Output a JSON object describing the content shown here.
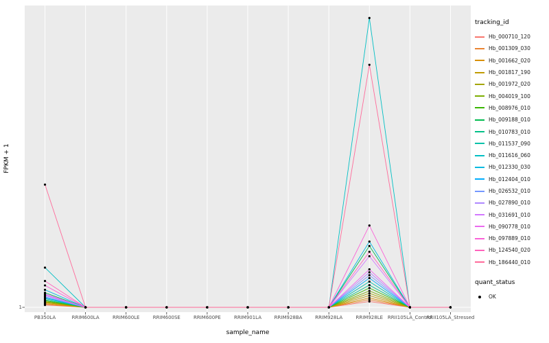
{
  "colors": {
    "panel_bg": "#EBEBEB",
    "grid": "#FFFFFF",
    "tick_mark": "#333333",
    "tick_text": "#4D4D4D",
    "axis_title": "#000000",
    "point": "#000000"
  },
  "chart_data": {
    "type": "line",
    "title": "",
    "xlabel": "sample_name",
    "ylabel": "FPKM + 1",
    "y_tick_labels": [
      "1"
    ],
    "y_scale_note": "log-like axis; only the tick '1' is labeled at the baseline; series values are estimated as fraction of panel height above the baseline (0 = baseline at FPKM+1 = 1, 1 = panel top)",
    "grid": "vertical white major gridlines per category on gray panel",
    "legend_position": "right",
    "categories": [
      "PB350LA",
      "RRIM600LA",
      "RRIM600LE",
      "RRIM600SE",
      "RRIM600PE",
      "RRIM901LA",
      "RRIM928BA",
      "RRIM928LA",
      "RRIM928LE",
      "RRII105LA_Control",
      "RRII105LA_Stressed"
    ],
    "series": [
      {
        "name": "Hb_000710_120",
        "color": "#F8766D",
        "heights": [
          0.008,
          0,
          0,
          0,
          0,
          0,
          0,
          0,
          0.02,
          0,
          0
        ]
      },
      {
        "name": "Hb_001309_030",
        "color": "#EA8331",
        "heights": [
          0.01,
          0,
          0,
          0,
          0,
          0,
          0,
          0,
          0.026,
          0,
          0
        ]
      },
      {
        "name": "Hb_001662_020",
        "color": "#D89000",
        "heights": [
          0.013,
          0,
          0,
          0,
          0,
          0,
          0,
          0,
          0.032,
          0,
          0
        ]
      },
      {
        "name": "Hb_001817_190",
        "color": "#C09B00",
        "heights": [
          0.016,
          0,
          0,
          0,
          0,
          0,
          0,
          0,
          0.04,
          0,
          0
        ]
      },
      {
        "name": "Hb_001972_020",
        "color": "#A3A500",
        "heights": [
          0.018,
          0,
          0,
          0,
          0,
          0,
          0,
          0,
          0.048,
          0,
          0
        ]
      },
      {
        "name": "Hb_004019_100",
        "color": "#7CAE00",
        "heights": [
          0.02,
          0,
          0,
          0,
          0,
          0,
          0,
          0,
          0.056,
          0,
          0
        ]
      },
      {
        "name": "Hb_008976_010",
        "color": "#39B600",
        "heights": [
          0.023,
          0,
          0,
          0,
          0,
          0,
          0,
          0,
          0.066,
          0,
          0
        ]
      },
      {
        "name": "Hb_009188_010",
        "color": "#00BB4E",
        "heights": [
          0.05,
          0,
          0,
          0,
          0,
          0,
          0,
          0,
          0.21,
          0,
          0
        ]
      },
      {
        "name": "Hb_010783_010",
        "color": "#00C087",
        "heights": [
          0.026,
          0,
          0,
          0,
          0,
          0,
          0,
          0,
          0.076,
          0,
          0
        ]
      },
      {
        "name": "Hb_011537_090",
        "color": "#00C1A9",
        "heights": [
          0.03,
          0,
          0,
          0,
          0,
          0,
          0,
          0,
          0.088,
          0,
          0
        ]
      },
      {
        "name": "Hb_011616_060",
        "color": "#00BFC4",
        "heights": [
          0.136,
          0,
          0,
          0,
          0,
          0,
          0,
          0,
          0.99,
          0,
          0
        ]
      },
      {
        "name": "Hb_012330_030",
        "color": "#00BAE0",
        "heights": [
          0.06,
          0,
          0,
          0,
          0,
          0,
          0,
          0,
          0.225,
          0,
          0
        ]
      },
      {
        "name": "Hb_012404_010",
        "color": "#00ACFC",
        "heights": [
          0.033,
          0,
          0,
          0,
          0,
          0,
          0,
          0,
          0.1,
          0,
          0
        ]
      },
      {
        "name": "Hb_026532_010",
        "color": "#7497FF",
        "heights": [
          0.036,
          0,
          0,
          0,
          0,
          0,
          0,
          0,
          0.11,
          0,
          0
        ]
      },
      {
        "name": "Hb_027890_010",
        "color": "#AE87FF",
        "heights": [
          0.04,
          0,
          0,
          0,
          0,
          0,
          0,
          0,
          0.12,
          0,
          0
        ]
      },
      {
        "name": "Hb_031691_010",
        "color": "#D277FF",
        "heights": [
          0.043,
          0,
          0,
          0,
          0,
          0,
          0,
          0,
          0.175,
          0,
          0
        ]
      },
      {
        "name": "Hb_090778_010",
        "color": "#EB69EF",
        "heights": [
          0.046,
          0,
          0,
          0,
          0,
          0,
          0,
          0,
          0.13,
          0,
          0
        ]
      },
      {
        "name": "Hb_097889_010",
        "color": "#FA61D7",
        "heights": [
          0.075,
          0,
          0,
          0,
          0,
          0,
          0,
          0,
          0.28,
          0,
          0
        ]
      },
      {
        "name": "Hb_124540_020",
        "color": "#FF62BC",
        "heights": [
          0.09,
          0,
          0,
          0,
          0,
          0,
          0,
          0,
          0.19,
          0,
          0
        ]
      },
      {
        "name": "Hb_186440_010",
        "color": "#FF6A9A",
        "heights": [
          0.42,
          0,
          0,
          0,
          0,
          0,
          0,
          0,
          0.83,
          0,
          0
        ]
      }
    ],
    "points": "every data point is marked with a small black dot (quant_status = OK)",
    "legend": {
      "color_title": "tracking_id",
      "shape_title": "quant_status",
      "shape_items": [
        {
          "label": "OK"
        }
      ]
    }
  }
}
